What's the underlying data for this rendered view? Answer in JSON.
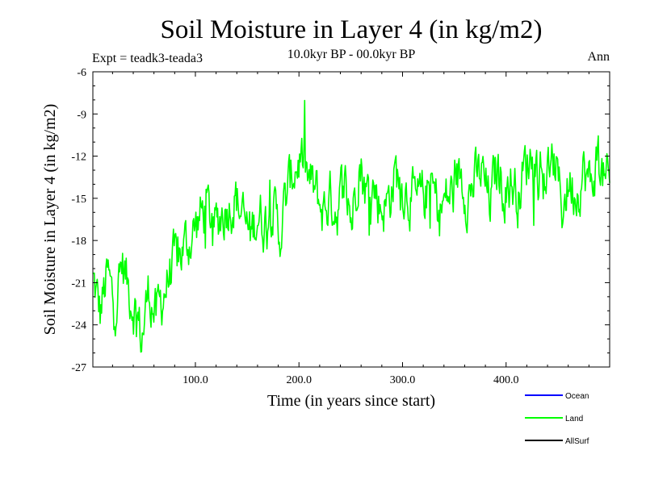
{
  "chart_data": {
    "type": "line",
    "title": "Soil Moisture in Layer 4 (in kg/m2)",
    "subtitle": "10.0kyr BP - 00.0kyr BP",
    "experiment": "Expt = teadk3-teada3",
    "season": "Ann",
    "xlabel": "Time (in years since start)",
    "ylabel": "Soil Moisture in Layer 4 (in kg/m2)",
    "xlim": [
      1,
      500
    ],
    "ylim": [
      -27,
      -6
    ],
    "xticks": [
      100,
      200,
      300,
      400
    ],
    "xtick_labels": [
      "100.0",
      "200.0",
      "300.0",
      "400.0"
    ],
    "yticks": [
      -6,
      -9,
      -12,
      -15,
      -18,
      -21,
      -24,
      -27
    ],
    "ytick_labels": [
      "-6",
      "-9",
      "-12",
      "-15",
      "-18",
      "-21",
      "-24",
      "-27"
    ],
    "legend_position": "bottom-right",
    "series": [
      {
        "name": "Ocean",
        "color": "#0000ff",
        "values": []
      },
      {
        "name": "Land",
        "color": "#00ff00",
        "x": [
          1,
          8,
          15,
          22,
          29,
          36,
          43,
          48,
          55,
          62,
          69,
          76,
          83,
          90,
          97,
          104,
          111,
          118,
          125,
          132,
          139,
          146,
          153,
          160,
          167,
          174,
          181,
          188,
          195,
          202,
          209,
          216,
          223,
          230,
          237,
          244,
          251,
          258,
          265,
          272,
          279,
          286,
          293,
          300,
          307,
          314,
          321,
          328,
          335,
          342,
          349,
          356,
          363,
          370,
          377,
          384,
          391,
          398,
          405,
          412,
          419,
          426,
          433,
          440,
          447,
          454,
          461,
          468,
          475,
          482,
          489,
          496,
          500
        ],
        "values": [
          -20.8,
          -23.2,
          -20.5,
          -22.8,
          -19.6,
          -21.5,
          -23.1,
          -25.1,
          -21.4,
          -23.6,
          -21.8,
          -20.2,
          -19.2,
          -18.4,
          -17.6,
          -16.4,
          -15.6,
          -17.3,
          -16.1,
          -15.4,
          -14.9,
          -16.4,
          -17.7,
          -16.0,
          -16.7,
          -15.2,
          -17.6,
          -14.9,
          -12.9,
          -12.1,
          -13.8,
          -14.6,
          -15.9,
          -15.0,
          -15.7,
          -13.7,
          -16.6,
          -12.0,
          -14.6,
          -14.2,
          -15.6,
          -15.3,
          -13.2,
          -14.1,
          -14.7,
          -15.5,
          -14.8,
          -14.1,
          -15.8,
          -15.1,
          -14.6,
          -13.1,
          -14.8,
          -13.8,
          -13.2,
          -15.4,
          -12.9,
          -14.2,
          -13.9,
          -14.7,
          -12.6,
          -11.7,
          -13.6,
          -13.0,
          -12.5,
          -15.6,
          -13.8,
          -14.4,
          -13.1,
          -14.2,
          -11.8,
          -14.4,
          -13.9
        ]
      },
      {
        "name": "AllSurf",
        "color": "#000000",
        "values": []
      }
    ]
  }
}
